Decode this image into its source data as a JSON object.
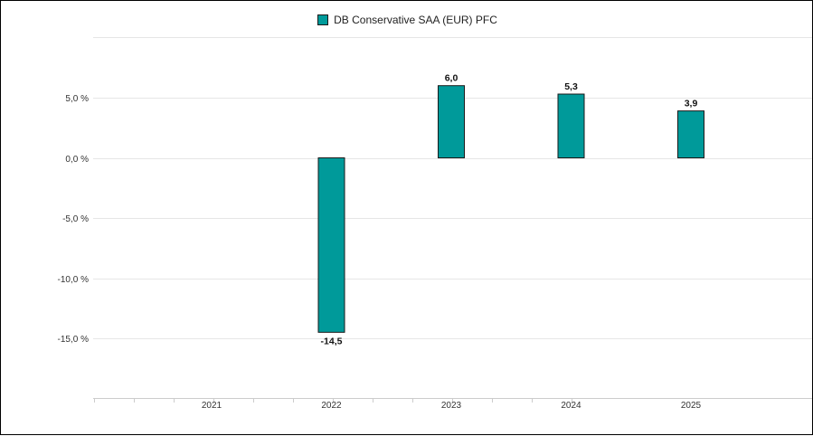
{
  "chart_data": {
    "type": "bar",
    "legend": {
      "label": "DB Conservative SAA (EUR) PFC",
      "position": "top-center"
    },
    "categories": [
      "2021",
      "2022",
      "2023",
      "2024",
      "2025"
    ],
    "series": [
      {
        "name": "DB Conservative SAA (EUR) PFC",
        "values": [
          null,
          -14.5,
          6.0,
          5.3,
          3.9
        ],
        "labels": [
          "",
          "-14,5",
          "6,0",
          "5,3",
          "3,9"
        ]
      }
    ],
    "y_ticks": [
      {
        "value": 5,
        "label": "5,0 %"
      },
      {
        "value": 0,
        "label": "0,0 %"
      },
      {
        "value": -5,
        "label": "-5,0 %"
      },
      {
        "value": -10,
        "label": "-10,0 %"
      },
      {
        "value": -15,
        "label": "-15,0 %"
      }
    ],
    "ylim": [
      -20,
      10
    ],
    "grid": true,
    "colors": {
      "bar": "#009a9a",
      "bar_border": "#1a1a1a",
      "grid": "#e6e6e6",
      "axis": "#cccccc"
    }
  }
}
